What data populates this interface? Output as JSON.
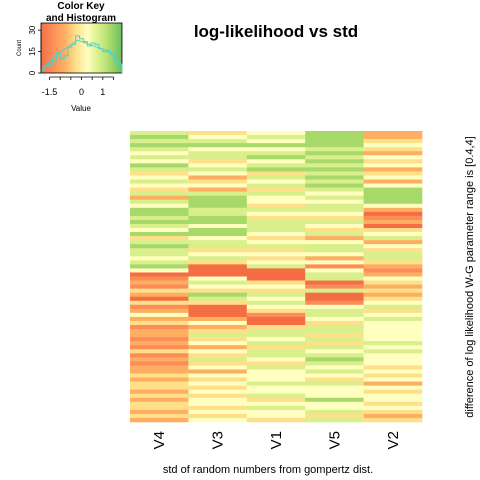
{
  "chart_data": {
    "type": "heatmap",
    "title": "log-likelihood vs std",
    "xlabel": "std of random numbers from gompertz dist.",
    "ylabel": "difference of log likelihood W-G parameter range is [0.4,4]",
    "columns": [
      "V4",
      "V3",
      "V1",
      "V5",
      "V2"
    ],
    "n_rows": 72,
    "color_scale": {
      "palette": [
        "#f46d43",
        "#fc8d59",
        "#fdae61",
        "#fee08b",
        "#ffffbf",
        "#d9ef8b",
        "#a6d96a",
        "#66bd63"
      ],
      "range": [
        -1.9,
        1.9
      ]
    },
    "color_key": {
      "title": "Color Key",
      "subtitle": "and Histogram",
      "xlabel": "Value",
      "ylabel": "Count",
      "x_ticks": [
        "-1.5",
        "0",
        "1"
      ],
      "x_tick_values": [
        -1.5,
        0,
        1
      ],
      "y_ticks": [
        "0",
        "15",
        "30"
      ],
      "y_tick_values": [
        0,
        15,
        30
      ],
      "ylim": [
        0,
        35
      ],
      "histogram": [
        2,
        5,
        6,
        9,
        14,
        10,
        12,
        18,
        20,
        26,
        24,
        22,
        19,
        21,
        20,
        17,
        15,
        16,
        14,
        8,
        6
      ],
      "density": [
        3,
        5,
        8,
        11,
        13,
        15,
        17,
        19,
        21,
        23,
        22,
        21,
        20,
        19,
        18,
        17,
        16,
        14,
        11,
        8,
        6
      ]
    },
    "values": [
      [
        0.6,
        -0.3,
        0.4,
        1.2,
        -0.6
      ],
      [
        1.0,
        0.3,
        0.8,
        1.4,
        -0.8
      ],
      [
        0.5,
        0.9,
        0.3,
        1.0,
        -0.3
      ],
      [
        1.3,
        1.0,
        1.1,
        1.2,
        0.3
      ],
      [
        0.8,
        0.4,
        0.2,
        0.9,
        -0.4
      ],
      [
        0.3,
        0.7,
        0.8,
        1.1,
        -0.6
      ],
      [
        0.9,
        0.6,
        1.0,
        0.7,
        0.2
      ],
      [
        0.2,
        -0.4,
        0.4,
        1.2,
        -0.3
      ],
      [
        1.1,
        0.2,
        0.7,
        0.5,
        0.4
      ],
      [
        0.6,
        0.9,
        1.2,
        1.3,
        -0.9
      ],
      [
        -0.3,
        0.3,
        -0.2,
        0.8,
        -0.4
      ],
      [
        0.4,
        -0.7,
        0.5,
        1.0,
        0.1
      ],
      [
        0.9,
        -0.3,
        0.3,
        0.6,
        -0.5
      ],
      [
        0.2,
        0.4,
        0.8,
        1.1,
        0.2
      ],
      [
        -0.4,
        -0.5,
        -0.2,
        0.7,
        1.2
      ],
      [
        0.7,
        0.5,
        0.6,
        0.4,
        1.4
      ],
      [
        -0.6,
        1.3,
        0.2,
        0.8,
        1.3
      ],
      [
        0.8,
        1.4,
        0.4,
        0.3,
        1.2
      ],
      [
        0.3,
        1.2,
        -0.3,
        0.9,
        0.4
      ],
      [
        1.0,
        0.8,
        0.8,
        0.6,
        -0.5
      ],
      [
        1.2,
        0.6,
        0.3,
        0.2,
        -1.5
      ],
      [
        0.5,
        1.0,
        -0.2,
        -0.4,
        -1.2
      ],
      [
        1.1,
        1.2,
        0.5,
        0.8,
        -0.6
      ],
      [
        0.8,
        0.4,
        0.9,
        0.3,
        -1.7
      ],
      [
        0.4,
        1.3,
        0.6,
        -0.3,
        -0.4
      ],
      [
        1.0,
        1.1,
        0.2,
        0.6,
        0.4
      ],
      [
        -0.3,
        0.3,
        -0.4,
        -0.5,
        0.6
      ],
      [
        0.7,
        0.9,
        0.3,
        0.2,
        -0.5
      ],
      [
        1.2,
        0.6,
        0.8,
        0.9,
        0.3
      ],
      [
        0.5,
        -0.2,
        -0.3,
        0.7,
        -0.3
      ],
      [
        0.9,
        0.4,
        0.4,
        0.3,
        0.9
      ],
      [
        0.3,
        0.8,
        -0.4,
        -0.6,
        0.7
      ],
      [
        0.6,
        -0.4,
        0.2,
        0.4,
        -0.2
      ],
      [
        1.0,
        -1.6,
        0.6,
        -1.3,
        -0.5
      ],
      [
        0.4,
        -1.8,
        -1.5,
        0.3,
        -1.0
      ],
      [
        -1.5,
        -1.7,
        -1.8,
        0.6,
        -0.6
      ],
      [
        -1.2,
        0.3,
        -1.6,
        0.9,
        0.3
      ],
      [
        -0.9,
        0.6,
        -0.3,
        -1.5,
        -0.4
      ],
      [
        -1.4,
        0.4,
        0.2,
        -1.3,
        -0.7
      ],
      [
        -0.3,
        -0.3,
        -0.4,
        0.7,
        -0.3
      ],
      [
        -0.6,
        1.0,
        0.5,
        -1.7,
        -0.8
      ],
      [
        -1.6,
        0.8,
        0.2,
        -1.8,
        -0.4
      ],
      [
        -0.4,
        -0.4,
        0.8,
        -1.4,
        0.3
      ],
      [
        -1.0,
        -1.7,
        0.4,
        0.3,
        0.6
      ],
      [
        -0.5,
        -1.5,
        -0.4,
        0.6,
        -0.3
      ],
      [
        0.3,
        -1.6,
        -1.4,
        0.9,
        0.2
      ],
      [
        -0.7,
        -0.5,
        -1.7,
        0.3,
        0.5
      ],
      [
        -0.4,
        0.4,
        -1.5,
        -0.4,
        0.3
      ],
      [
        -1.1,
        -0.6,
        -0.3,
        0.7,
        0.4
      ],
      [
        -0.6,
        -0.3,
        0.5,
        0.9,
        0.3
      ],
      [
        -0.9,
        0.5,
        0.8,
        -0.4,
        0.3
      ],
      [
        -1.2,
        -0.4,
        0.4,
        0.6,
        0.4
      ],
      [
        -0.7,
        0.3,
        0.7,
        -0.3,
        0.9
      ],
      [
        -1.4,
        -0.5,
        -0.3,
        0.5,
        0.3
      ],
      [
        -0.4,
        0.2,
        0.5,
        0.2,
        0.6
      ],
      [
        -1.0,
        -0.4,
        0.8,
        0.8,
        0.3
      ],
      [
        -0.6,
        0.5,
        0.3,
        1.2,
        0.2
      ],
      [
        -1.3,
        -0.3,
        -0.4,
        0.6,
        0.3
      ],
      [
        -0.5,
        0.3,
        0.6,
        0.3,
        -0.3
      ],
      [
        -0.9,
        -0.5,
        0.3,
        0.6,
        0.2
      ],
      [
        -0.3,
        0.2,
        0.4,
        0.4,
        -0.4
      ],
      [
        -0.7,
        -0.3,
        0.2,
        -0.3,
        0.3
      ],
      [
        -0.4,
        0.2,
        0.5,
        0.6,
        -0.5
      ],
      [
        -0.3,
        -0.4,
        0.3,
        0.3,
        0.2
      ],
      [
        -0.6,
        0.3,
        0.4,
        0.4,
        -0.3
      ],
      [
        -0.2,
        -0.3,
        0.6,
        0.3,
        0.3
      ],
      [
        -0.5,
        0.3,
        -0.3,
        1.0,
        0.2
      ],
      [
        -0.4,
        0.2,
        0.3,
        0.2,
        -0.4
      ],
      [
        -0.3,
        -0.2,
        0.6,
        0.3,
        0.3
      ],
      [
        -0.5,
        0.3,
        0.2,
        0.8,
        -0.3
      ],
      [
        -0.4,
        -0.3,
        0.3,
        -0.4,
        -0.6
      ],
      [
        -0.5,
        0.2,
        -0.4,
        0.6,
        -0.4
      ]
    ]
  }
}
